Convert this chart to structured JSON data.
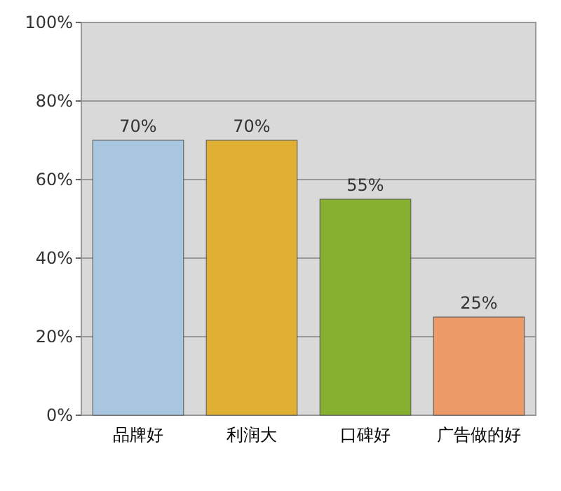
{
  "chart_data": {
    "type": "bar",
    "categories": [
      "品牌好",
      "利润大",
      "口碑好",
      "广告做的好"
    ],
    "values": [
      70,
      70,
      55,
      25
    ],
    "colors": [
      "#a9c6e0",
      "#e0b034",
      "#86b030",
      "#ec9a68"
    ],
    "ylim": [
      0,
      100
    ],
    "yticks": [
      {
        "value": 0,
        "label": "0%"
      },
      {
        "value": 20,
        "label": "20%"
      },
      {
        "value": 40,
        "label": "40%"
      },
      {
        "value": 60,
        "label": "60%"
      },
      {
        "value": 80,
        "label": "80%"
      },
      {
        "value": 100,
        "label": "100%"
      }
    ],
    "value_labels": [
      "70%",
      "70%",
      "55%",
      "25%"
    ],
    "grid": "y"
  }
}
